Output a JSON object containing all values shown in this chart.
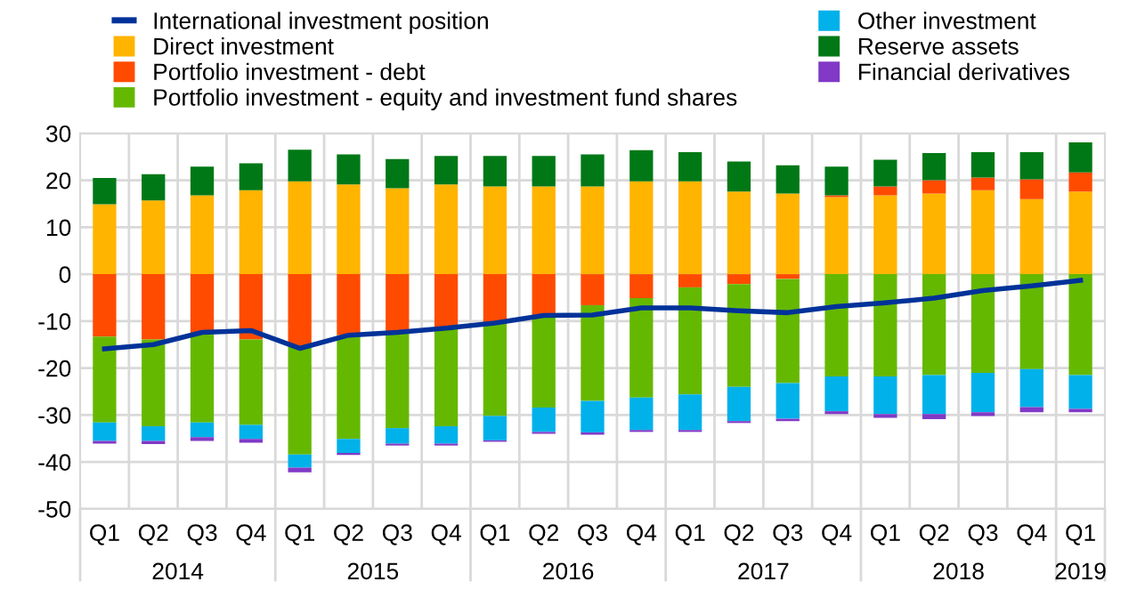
{
  "chart_data": {
    "type": "bar",
    "stacked": true,
    "categories": [
      "Q1",
      "Q2",
      "Q3",
      "Q4",
      "Q1",
      "Q2",
      "Q3",
      "Q4",
      "Q1",
      "Q2",
      "Q3",
      "Q4",
      "Q1",
      "Q2",
      "Q3",
      "Q4",
      "Q1",
      "Q2",
      "Q3",
      "Q4",
      "Q1"
    ],
    "series": [
      {
        "name": "International investment position",
        "type": "line",
        "color": "#003299",
        "marker": "none",
        "line_style": "solid",
        "values": [
          -15.9,
          -15.0,
          -12.4,
          -12.0,
          -15.8,
          -13.0,
          -12.4,
          -11.5,
          -10.4,
          -8.8,
          -8.7,
          -7.2,
          -7.2,
          -7.8,
          -8.2,
          -6.9,
          -6.1,
          -5.1,
          -3.5,
          -2.5,
          -1.3
        ]
      },
      {
        "name": "Direct investment",
        "color": "#ffb400",
        "values": [
          14.9,
          15.7,
          16.8,
          17.9,
          19.8,
          19.1,
          18.3,
          19.1,
          18.7,
          18.7,
          18.7,
          19.8,
          19.8,
          17.6,
          17.2,
          16.4,
          16.8,
          17.2,
          17.9,
          16.0,
          17.6
        ]
      },
      {
        "name": "Portfolio investment - debt",
        "color": "#ff4b00",
        "values": [
          -13.3,
          -13.9,
          -12.6,
          -13.9,
          -15.4,
          -13.0,
          -12.5,
          -11.6,
          -10.4,
          -8.7,
          -6.6,
          -5.1,
          -2.8,
          -2.1,
          -1.0,
          0.4,
          1.9,
          2.8,
          2.7,
          4.2,
          4.1
        ]
      },
      {
        "name": "Portfolio investment - equity and investment fund shares",
        "color": "#65b800",
        "values": [
          -18.3,
          -18.5,
          -19.0,
          -18.2,
          -23.0,
          -22.1,
          -20.3,
          -20.8,
          -19.8,
          -19.7,
          -20.4,
          -21.2,
          -22.8,
          -21.9,
          -22.2,
          -21.8,
          -21.8,
          -21.5,
          -21.0,
          -20.2,
          -21.5
        ]
      },
      {
        "name": "Other investment",
        "color": "#00b1ea",
        "values": [
          -3.9,
          -3.1,
          -3.1,
          -3.0,
          -2.8,
          -3.0,
          -3.3,
          -3.7,
          -5.2,
          -5.2,
          -6.7,
          -6.9,
          -7.6,
          -7.3,
          -7.6,
          -7.4,
          -8.0,
          -8.3,
          -8.4,
          -8.1,
          -7.2
        ]
      },
      {
        "name": "Reserve assets",
        "color": "#007816",
        "values": [
          5.6,
          5.6,
          6.1,
          5.7,
          6.7,
          6.4,
          6.2,
          6.1,
          6.5,
          6.5,
          6.8,
          6.6,
          6.2,
          6.4,
          6.0,
          6.1,
          5.7,
          5.8,
          5.4,
          5.8,
          6.4
        ]
      },
      {
        "name": "Financial derivatives",
        "color": "#8139c6",
        "values": [
          -0.6,
          -0.7,
          -0.8,
          -0.8,
          -1.0,
          -0.4,
          -0.4,
          -0.4,
          -0.3,
          -0.4,
          -0.5,
          -0.4,
          -0.4,
          -0.4,
          -0.5,
          -0.6,
          -0.8,
          -1.1,
          -0.8,
          -1.1,
          -0.7
        ]
      }
    ],
    "annotations": [
      "2014",
      "2015",
      "2016",
      "2017",
      "2018",
      "2019"
    ],
    "ylim": [
      -50,
      30
    ],
    "yticks": [
      -50,
      -40,
      -30,
      -20,
      -10,
      0,
      10,
      20,
      30
    ],
    "grid": true,
    "legend": "top"
  }
}
